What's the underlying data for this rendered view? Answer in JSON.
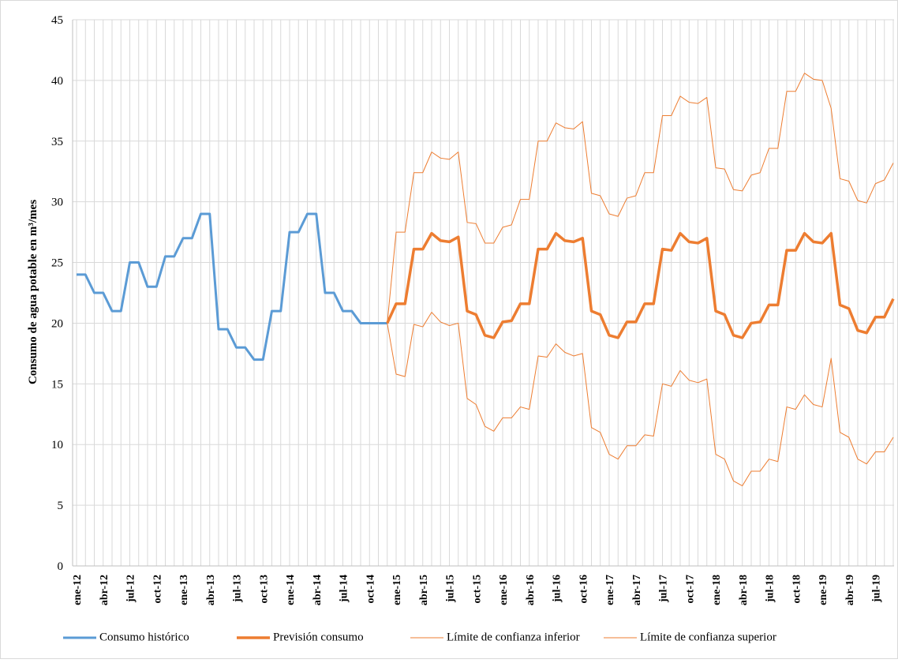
{
  "chart_data": {
    "type": "line",
    "y_label": "Consumo de agua potable en m³/mes",
    "categories": [
      "ene-12",
      null,
      null,
      "abr-12",
      null,
      null,
      "jul-12",
      null,
      null,
      "oct-12",
      null,
      null,
      "ene-13",
      null,
      null,
      "abr-13",
      null,
      null,
      "jul-13",
      null,
      null,
      "oct-13",
      null,
      null,
      "ene-14",
      null,
      null,
      "abr-14",
      null,
      null,
      "jul-14",
      null,
      null,
      "oct-14",
      null,
      null,
      "ene-15",
      null,
      null,
      "abr-15",
      null,
      null,
      "jul-15",
      null,
      null,
      "oct-15",
      null,
      null,
      "ene-16",
      null,
      null,
      "abr-16",
      null,
      null,
      "jul-16",
      null,
      null,
      "oct-16",
      null,
      null,
      "ene-17",
      null,
      null,
      "abr-17",
      null,
      null,
      "jul-17",
      null,
      null,
      "oct-17",
      null,
      null,
      "ene-18",
      null,
      null,
      "abr-18",
      null,
      null,
      "jul-18",
      null,
      null,
      "oct-18",
      null,
      null,
      "ene-19",
      null,
      null,
      "abr-19",
      null,
      null,
      "jul-19",
      null,
      null
    ],
    "series": [
      {
        "name": "Consumo histórico",
        "color": "#5b9bd5",
        "width": 3,
        "values": [
          24,
          24,
          22.5,
          22.5,
          21,
          21,
          25,
          25,
          23,
          23,
          25.5,
          25.5,
          27,
          27,
          29,
          29,
          19.5,
          19.5,
          18,
          18,
          17,
          17,
          21,
          21,
          27.5,
          27.5,
          29,
          29,
          22.5,
          22.5,
          21,
          21,
          20,
          20,
          20,
          20,
          null,
          null,
          null,
          null,
          null,
          null,
          null,
          null,
          null,
          null,
          null,
          null,
          null,
          null,
          null,
          null,
          null,
          null,
          null,
          null,
          null,
          null,
          null,
          null,
          null,
          null,
          null,
          null,
          null,
          null,
          null,
          null,
          null,
          null,
          null,
          null,
          null,
          null,
          null,
          null,
          null,
          null,
          null,
          null,
          null,
          null,
          null,
          null,
          null,
          null,
          null,
          null,
          null,
          null,
          null,
          null,
          null
        ]
      },
      {
        "name": "Previsión consumo",
        "color": "#ed7d31",
        "width": 3.5,
        "values": [
          null,
          null,
          null,
          null,
          null,
          null,
          null,
          null,
          null,
          null,
          null,
          null,
          null,
          null,
          null,
          null,
          null,
          null,
          null,
          null,
          null,
          null,
          null,
          null,
          null,
          null,
          null,
          null,
          null,
          null,
          null,
          null,
          null,
          null,
          null,
          20,
          21.6,
          21.6,
          26.1,
          26.1,
          27.4,
          26.8,
          26.7,
          27.1,
          21.0,
          20.7,
          19.0,
          18.8,
          20.1,
          20.2,
          21.6,
          21.6,
          26.1,
          26.1,
          27.4,
          26.8,
          26.7,
          27.0,
          21.0,
          20.7,
          19.0,
          18.8,
          20.1,
          20.1,
          21.6,
          21.6,
          26.1,
          26.0,
          27.4,
          26.7,
          26.6,
          27.0,
          21.0,
          20.7,
          19.0,
          18.8,
          20.0,
          20.1,
          21.5,
          21.5,
          26.0,
          26.0,
          27.4,
          26.7,
          26.6,
          27.4,
          21.5,
          21.2,
          19.4,
          19.2,
          20.5,
          20.5,
          22.0
        ]
      },
      {
        "name": "Límite de confianza inferior",
        "color": "#ed7d31",
        "width": 1,
        "values": [
          null,
          null,
          null,
          null,
          null,
          null,
          null,
          null,
          null,
          null,
          null,
          null,
          null,
          null,
          null,
          null,
          null,
          null,
          null,
          null,
          null,
          null,
          null,
          null,
          null,
          null,
          null,
          null,
          null,
          null,
          null,
          null,
          null,
          null,
          null,
          20,
          15.8,
          15.6,
          19.9,
          19.7,
          20.9,
          20.1,
          19.8,
          20.0,
          13.8,
          13.3,
          11.5,
          11.1,
          12.2,
          12.2,
          13.1,
          12.9,
          17.3,
          17.2,
          18.3,
          17.6,
          17.3,
          17.5,
          11.4,
          11.0,
          9.2,
          8.8,
          9.9,
          9.9,
          10.8,
          10.7,
          15.0,
          14.8,
          16.1,
          15.3,
          15.1,
          15.4,
          9.2,
          8.8,
          7.0,
          6.6,
          7.8,
          7.8,
          8.8,
          8.6,
          13.1,
          12.9,
          14.1,
          13.3,
          13.1,
          17.1,
          11.0,
          10.6,
          8.8,
          8.4,
          9.4,
          9.4,
          10.6
        ]
      },
      {
        "name": "Límite de confianza superior",
        "color": "#ed7d31",
        "width": 1,
        "values": [
          null,
          null,
          null,
          null,
          null,
          null,
          null,
          null,
          null,
          null,
          null,
          null,
          null,
          null,
          null,
          null,
          null,
          null,
          null,
          null,
          null,
          null,
          null,
          null,
          null,
          null,
          null,
          null,
          null,
          null,
          null,
          null,
          null,
          null,
          null,
          20,
          27.5,
          27.5,
          32.4,
          32.4,
          34.1,
          33.6,
          33.5,
          34.1,
          28.3,
          28.2,
          26.6,
          26.6,
          27.9,
          28.1,
          30.2,
          30.2,
          35.0,
          35.0,
          36.5,
          36.1,
          36.0,
          36.6,
          30.7,
          30.5,
          29.0,
          28.8,
          30.3,
          30.5,
          32.4,
          32.4,
          37.1,
          37.1,
          38.7,
          38.2,
          38.1,
          38.6,
          32.8,
          32.7,
          31.0,
          30.9,
          32.2,
          32.4,
          34.4,
          34.4,
          39.1,
          39.1,
          40.6,
          40.1,
          40.0,
          37.7,
          31.9,
          31.7,
          30.1,
          29.9,
          31.5,
          31.8,
          33.2
        ]
      }
    ],
    "ylim": [
      0,
      45
    ],
    "yticks": [
      0,
      5,
      10,
      15,
      20,
      25,
      30,
      35,
      40,
      45
    ],
    "grid": true
  }
}
